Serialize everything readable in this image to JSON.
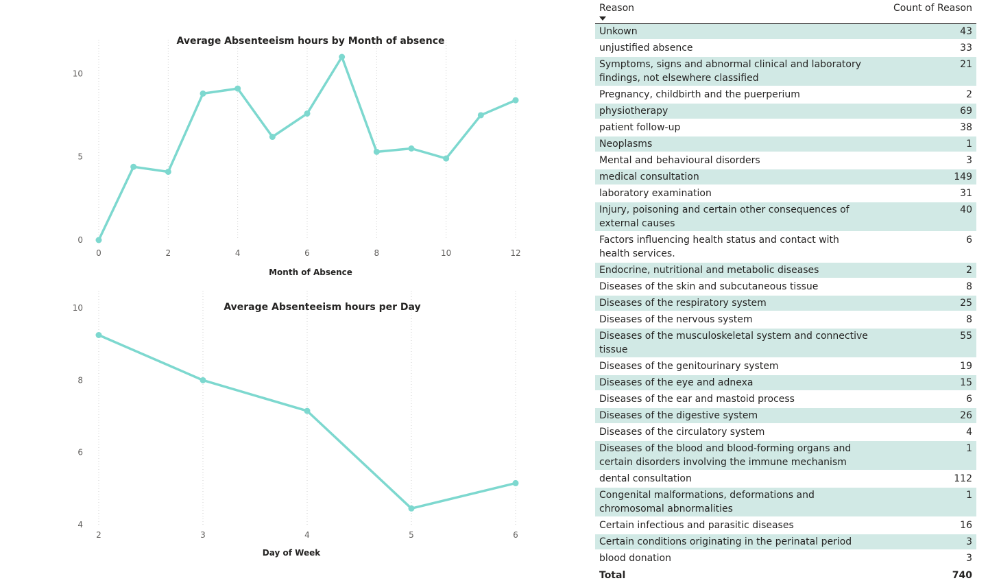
{
  "chart_data": [
    {
      "type": "line",
      "title": "Average Absenteeism hours by Month of absence",
      "xlabel": "Month of Absence",
      "ylabel": "",
      "x": [
        0,
        1,
        2,
        3,
        4,
        5,
        6,
        7,
        8,
        9,
        10,
        11,
        12
      ],
      "values": [
        0,
        4.4,
        4.1,
        8.8,
        9.1,
        6.2,
        7.6,
        11.0,
        5.3,
        5.5,
        4.9,
        7.5,
        8.4
      ],
      "xticks": [
        "0",
        "2",
        "4",
        "6",
        "8",
        "10",
        "12"
      ],
      "yticks": [
        "0",
        "5",
        "10"
      ],
      "xlim": [
        0,
        12
      ],
      "ylim": [
        0,
        11
      ],
      "color": "#7dd8cf",
      "grid": "vertical dotted"
    },
    {
      "type": "line",
      "title": "Average Absenteeism hours per Day",
      "xlabel": "Day of Week",
      "ylabel": "",
      "x": [
        2,
        3,
        4,
        5,
        6
      ],
      "values": [
        9.25,
        8.0,
        7.15,
        4.45,
        5.15
      ],
      "xticks": [
        "2",
        "3",
        "4",
        "5",
        "6"
      ],
      "yticks": [
        "4",
        "6",
        "8",
        "10"
      ],
      "xlim": [
        2,
        6
      ],
      "ylim": [
        4,
        10
      ],
      "color": "#7dd8cf",
      "grid": "vertical dotted"
    }
  ],
  "table": {
    "headers": {
      "reason": "Reason",
      "count": "Count of Reason"
    },
    "rows": [
      {
        "reason": "Unkown",
        "count": "43"
      },
      {
        "reason": "unjustified absence",
        "count": "33"
      },
      {
        "reason": "Symptoms, signs and abnormal clinical and laboratory findings, not elsewhere classified",
        "count": "21"
      },
      {
        "reason": "Pregnancy, childbirth and the puerperium",
        "count": "2"
      },
      {
        "reason": "physiotherapy",
        "count": "69"
      },
      {
        "reason": "patient follow-up",
        "count": "38"
      },
      {
        "reason": "Neoplasms",
        "count": "1"
      },
      {
        "reason": "Mental and behavioural disorders",
        "count": "3"
      },
      {
        "reason": "medical consultation",
        "count": "149"
      },
      {
        "reason": "laboratory examination",
        "count": "31"
      },
      {
        "reason": "Injury, poisoning and certain other consequences of external causes",
        "count": "40"
      },
      {
        "reason": "Factors influencing health status and contact with health services.",
        "count": "6"
      },
      {
        "reason": "Endocrine, nutritional and metabolic diseases",
        "count": "2"
      },
      {
        "reason": "Diseases of the skin and subcutaneous tissue",
        "count": "8"
      },
      {
        "reason": "Diseases of the respiratory system",
        "count": "25"
      },
      {
        "reason": "Diseases of the nervous system",
        "count": "8"
      },
      {
        "reason": "Diseases of the musculoskeletal system and connective tissue",
        "count": "55"
      },
      {
        "reason": "Diseases of the genitourinary system",
        "count": "19"
      },
      {
        "reason": "Diseases of the eye and adnexa",
        "count": "15"
      },
      {
        "reason": "Diseases of the ear and mastoid process",
        "count": "6"
      },
      {
        "reason": "Diseases of the digestive system",
        "count": "26"
      },
      {
        "reason": "Diseases of the circulatory system",
        "count": "4"
      },
      {
        "reason": "Diseases of the blood and blood-forming organs and certain disorders involving the immune mechanism",
        "count": "1"
      },
      {
        "reason": "dental consultation",
        "count": "112"
      },
      {
        "reason": "Congenital malformations, deformations and chromosomal abnormalities",
        "count": "1"
      },
      {
        "reason": "Certain infectious and parasitic diseases",
        "count": "16"
      },
      {
        "reason": "Certain conditions originating in the perinatal period",
        "count": "3"
      },
      {
        "reason": "blood donation",
        "count": "3"
      }
    ],
    "total": {
      "label": "Total",
      "count": "740"
    },
    "sort_icon": "sort-descending-icon",
    "stripe_color": "#d1e9e5"
  }
}
